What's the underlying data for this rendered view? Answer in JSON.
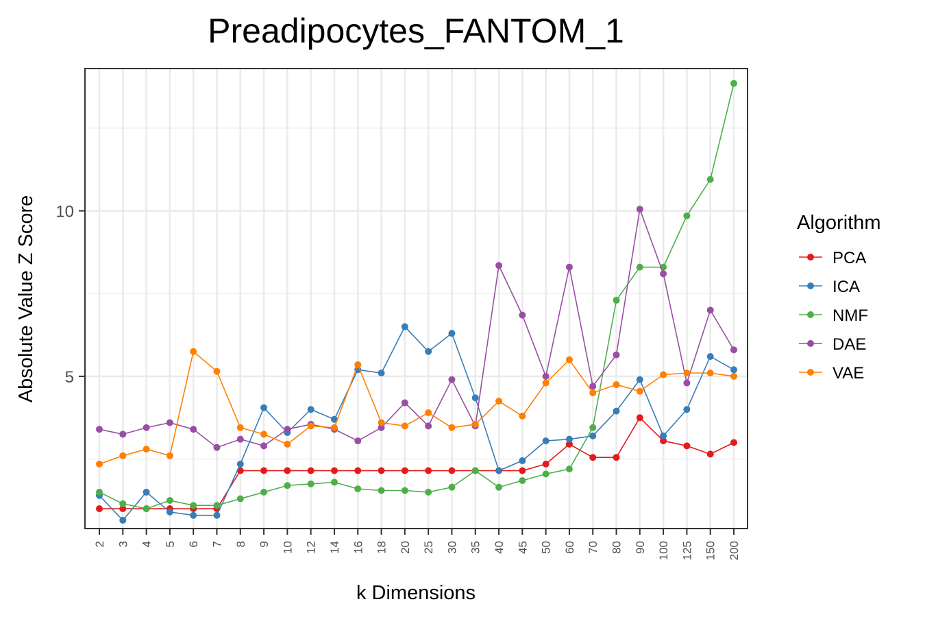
{
  "chart_data": {
    "type": "line",
    "title": "Preadipocytes_FANTOM_1",
    "xlabel": "k Dimensions",
    "ylabel": "Absolute Value Z Score",
    "categories": [
      "2",
      "3",
      "4",
      "5",
      "6",
      "7",
      "8",
      "9",
      "10",
      "12",
      "14",
      "16",
      "18",
      "20",
      "25",
      "30",
      "35",
      "40",
      "45",
      "50",
      "60",
      "70",
      "80",
      "90",
      "100",
      "125",
      "150",
      "200"
    ],
    "y_ticks": [
      5,
      10
    ],
    "ylim": [
      0.4,
      14.3
    ],
    "grid": true,
    "legend_title": "Algorithm",
    "legend_position": "right",
    "series": [
      {
        "name": "PCA",
        "color": "#e41a1c",
        "values": [
          1.0,
          1.0,
          1.0,
          1.0,
          1.0,
          1.0,
          2.15,
          2.15,
          2.15,
          2.15,
          2.15,
          2.15,
          2.15,
          2.15,
          2.15,
          2.15,
          2.15,
          2.15,
          2.15,
          2.35,
          2.95,
          2.55,
          2.55,
          3.75,
          3.05,
          2.9,
          2.65,
          3.0
        ]
      },
      {
        "name": "ICA",
        "color": "#377eb8",
        "values": [
          1.4,
          0.65,
          1.5,
          0.9,
          0.8,
          0.8,
          2.35,
          4.05,
          3.3,
          4.0,
          3.7,
          5.2,
          5.1,
          6.5,
          5.75,
          6.3,
          4.35,
          2.15,
          2.45,
          3.05,
          3.1,
          3.2,
          3.95,
          4.9,
          3.2,
          4.0,
          5.6,
          5.2
        ]
      },
      {
        "name": "NMF",
        "color": "#4daf4a",
        "values": [
          1.5,
          1.15,
          1.0,
          1.25,
          1.1,
          1.1,
          1.3,
          1.5,
          1.7,
          1.75,
          1.8,
          1.6,
          1.55,
          1.55,
          1.5,
          1.65,
          2.15,
          1.65,
          1.85,
          2.05,
          2.2,
          3.45,
          7.3,
          8.3,
          8.3,
          9.85,
          10.95,
          13.85
        ]
      },
      {
        "name": "DAE",
        "color": "#984ea3",
        "values": [
          3.4,
          3.25,
          3.45,
          3.6,
          3.4,
          2.85,
          3.1,
          2.9,
          3.4,
          3.55,
          3.4,
          3.05,
          3.45,
          4.2,
          3.5,
          4.9,
          3.5,
          8.35,
          6.85,
          5.0,
          8.3,
          4.7,
          5.65,
          10.05,
          8.1,
          4.8,
          7.0,
          5.8
        ]
      },
      {
        "name": "VAE",
        "color": "#ff7f00",
        "values": [
          2.35,
          2.6,
          2.8,
          2.6,
          5.75,
          5.15,
          3.45,
          3.25,
          2.95,
          3.5,
          3.45,
          5.35,
          3.6,
          3.5,
          3.9,
          3.45,
          3.55,
          4.25,
          3.8,
          4.8,
          5.5,
          4.5,
          4.75,
          4.55,
          5.05,
          5.1,
          5.1,
          5.0
        ]
      }
    ]
  }
}
